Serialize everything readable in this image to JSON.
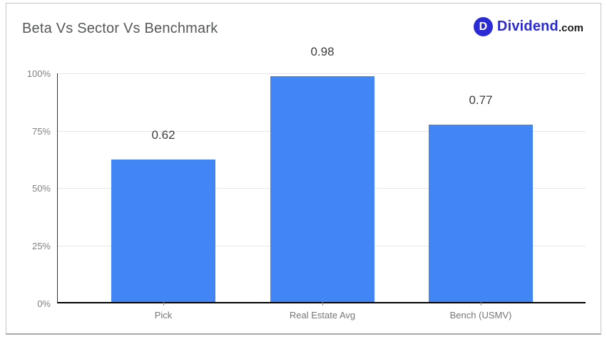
{
  "page": {
    "background": "#ffffff"
  },
  "header": {
    "title": "Beta Vs Sector Vs Benchmark",
    "logo": {
      "monogram": "D",
      "brand": "Dividend",
      "suffix": ".com",
      "brand_color": "#2b2bd5",
      "suffix_color": "#1a1a1a"
    }
  },
  "chart_data": {
    "type": "bar",
    "title": "Beta Vs Sector Vs Benchmark",
    "categories": [
      "Pick",
      "Real Estate Avg",
      "Bench (USMV)"
    ],
    "values": [
      0.62,
      0.98,
      0.77
    ],
    "value_labels": [
      "0.62",
      "0.98",
      "0.77"
    ],
    "yticks": [
      "100%",
      "75%",
      "50%",
      "25%",
      "0%"
    ],
    "ylim": [
      0,
      1
    ],
    "bar_color": "#4285f4",
    "gridline_color": "#e6e6e6",
    "grid": true,
    "legend": "none",
    "xlabel": "",
    "ylabel": ""
  }
}
